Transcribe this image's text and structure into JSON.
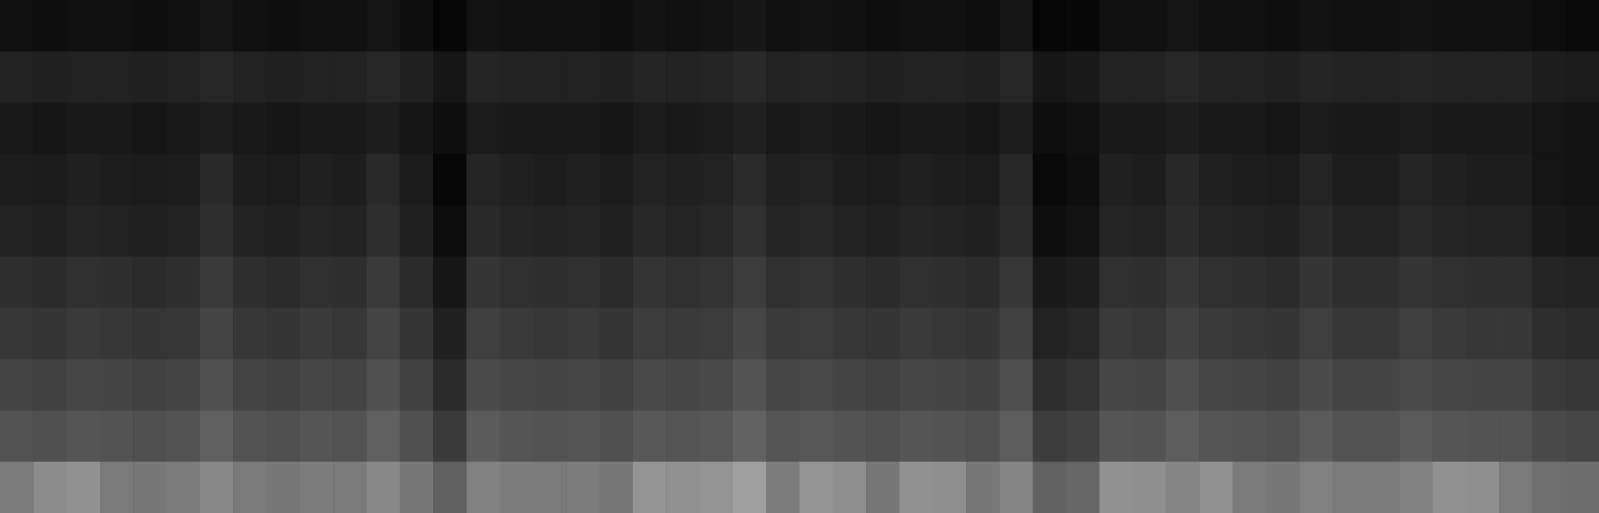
{
  "chart_data": {
    "type": "heatmap",
    "tick_labels": false,
    "color": "#ffffff",
    "zlim": [
      0,
      100
    ],
    "cells": [
      [
        8,
        7,
        8,
        8,
        7,
        8,
        10,
        8,
        7,
        8,
        8,
        10,
        7,
        3,
        9,
        8,
        8,
        8,
        7,
        9,
        8,
        9,
        11,
        8,
        9,
        8,
        7,
        8,
        8,
        7,
        10,
        3,
        4,
        8,
        8,
        10,
        8,
        8,
        7,
        9,
        8,
        8,
        9,
        8,
        8,
        8,
        6,
        5
      ],
      [
        16,
        15,
        16,
        16,
        15,
        16,
        18,
        16,
        15,
        16,
        16,
        18,
        15,
        11,
        17,
        16,
        16,
        16,
        15,
        17,
        16,
        17,
        19,
        16,
        17,
        16,
        15,
        16,
        16,
        15,
        18,
        11,
        12,
        16,
        16,
        18,
        16,
        16,
        15,
        17,
        16,
        16,
        17,
        16,
        16,
        16,
        14,
        13
      ],
      [
        12,
        11,
        12,
        12,
        11,
        12,
        14,
        12,
        11,
        12,
        12,
        14,
        11,
        7,
        13,
        12,
        12,
        12,
        11,
        13,
        12,
        13,
        15,
        12,
        13,
        12,
        11,
        12,
        12,
        11,
        14,
        7,
        8,
        12,
        12,
        14,
        12,
        12,
        11,
        13,
        12,
        12,
        13,
        12,
        12,
        12,
        10,
        9
      ],
      [
        14,
        13,
        15,
        14,
        13,
        14,
        19,
        14,
        13,
        15,
        14,
        19,
        13,
        4,
        17,
        15,
        14,
        15,
        13,
        16,
        15,
        16,
        20,
        15,
        16,
        14,
        13,
        15,
        14,
        13,
        18,
        5,
        7,
        15,
        14,
        18,
        15,
        14,
        13,
        17,
        14,
        14,
        17,
        15,
        14,
        14,
        10,
        9
      ],
      [
        16,
        15,
        17,
        16,
        15,
        16,
        21,
        16,
        15,
        17,
        16,
        21,
        15,
        6,
        19,
        17,
        16,
        17,
        15,
        18,
        17,
        18,
        22,
        17,
        18,
        16,
        15,
        17,
        16,
        15,
        20,
        7,
        9,
        17,
        16,
        20,
        17,
        16,
        15,
        19,
        16,
        16,
        19,
        17,
        16,
        16,
        12,
        11
      ],
      [
        21,
        20,
        22,
        21,
        20,
        21,
        26,
        21,
        20,
        22,
        21,
        26,
        20,
        11,
        24,
        22,
        21,
        22,
        20,
        23,
        22,
        23,
        27,
        22,
        23,
        21,
        20,
        22,
        21,
        20,
        25,
        12,
        14,
        22,
        21,
        25,
        22,
        21,
        20,
        24,
        21,
        21,
        24,
        22,
        21,
        21,
        17,
        16
      ],
      [
        25,
        24,
        26,
        25,
        24,
        25,
        30,
        25,
        24,
        26,
        25,
        30,
        24,
        15,
        28,
        26,
        25,
        26,
        24,
        27,
        26,
        27,
        31,
        26,
        27,
        25,
        24,
        26,
        25,
        24,
        29,
        16,
        18,
        26,
        25,
        29,
        26,
        25,
        24,
        28,
        25,
        25,
        28,
        26,
        25,
        25,
        21,
        20
      ],
      [
        30,
        29,
        31,
        30,
        29,
        30,
        35,
        30,
        29,
        31,
        30,
        35,
        29,
        20,
        33,
        31,
        30,
        31,
        29,
        32,
        31,
        32,
        36,
        31,
        32,
        30,
        29,
        31,
        30,
        29,
        34,
        21,
        23,
        31,
        30,
        34,
        31,
        30,
        29,
        33,
        30,
        30,
        33,
        31,
        30,
        30,
        26,
        25
      ],
      [
        36,
        35,
        37,
        36,
        35,
        36,
        41,
        36,
        35,
        37,
        36,
        41,
        35,
        26,
        39,
        37,
        36,
        37,
        35,
        38,
        37,
        38,
        42,
        37,
        38,
        36,
        35,
        37,
        36,
        35,
        40,
        27,
        29,
        37,
        36,
        40,
        37,
        36,
        35,
        39,
        36,
        36,
        39,
        37,
        36,
        36,
        32,
        31
      ],
      [
        51,
        58,
        60,
        51,
        50,
        51,
        56,
        51,
        50,
        52,
        51,
        56,
        50,
        41,
        54,
        52,
        51,
        52,
        50,
        61,
        60,
        61,
        65,
        52,
        61,
        59,
        50,
        60,
        59,
        50,
        55,
        42,
        44,
        60,
        59,
        55,
        60,
        51,
        50,
        54,
        51,
        51,
        54,
        60,
        59,
        51,
        47,
        46
      ]
    ]
  }
}
